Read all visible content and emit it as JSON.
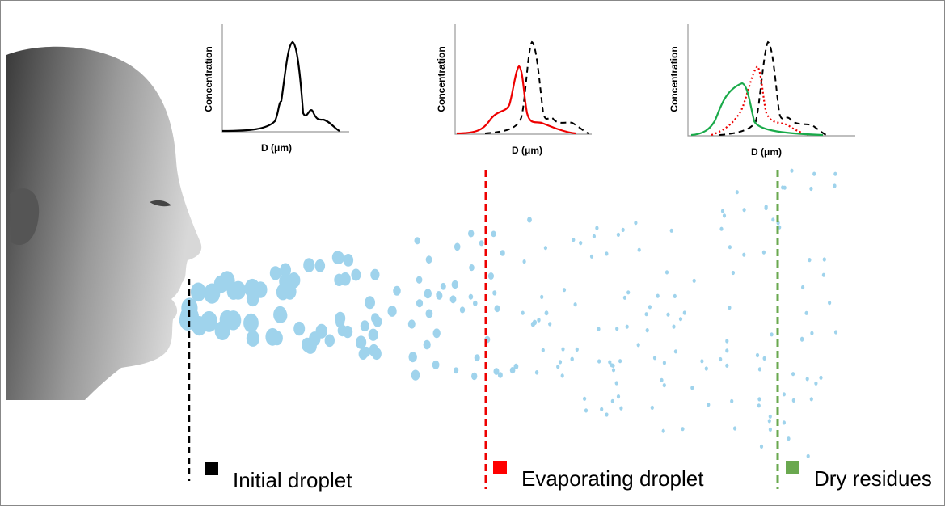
{
  "panels": [
    {
      "y_label": "Concentration",
      "x_label": "D (μm)"
    },
    {
      "y_label": "Concentration",
      "x_label": "D (μm)"
    },
    {
      "y_label": "Concentration",
      "x_label": "D (μm)"
    }
  ],
  "legend": [
    {
      "label": "Initial droplet"
    },
    {
      "label": "Evaporating droplet"
    },
    {
      "label": "Dry residues"
    }
  ]
}
